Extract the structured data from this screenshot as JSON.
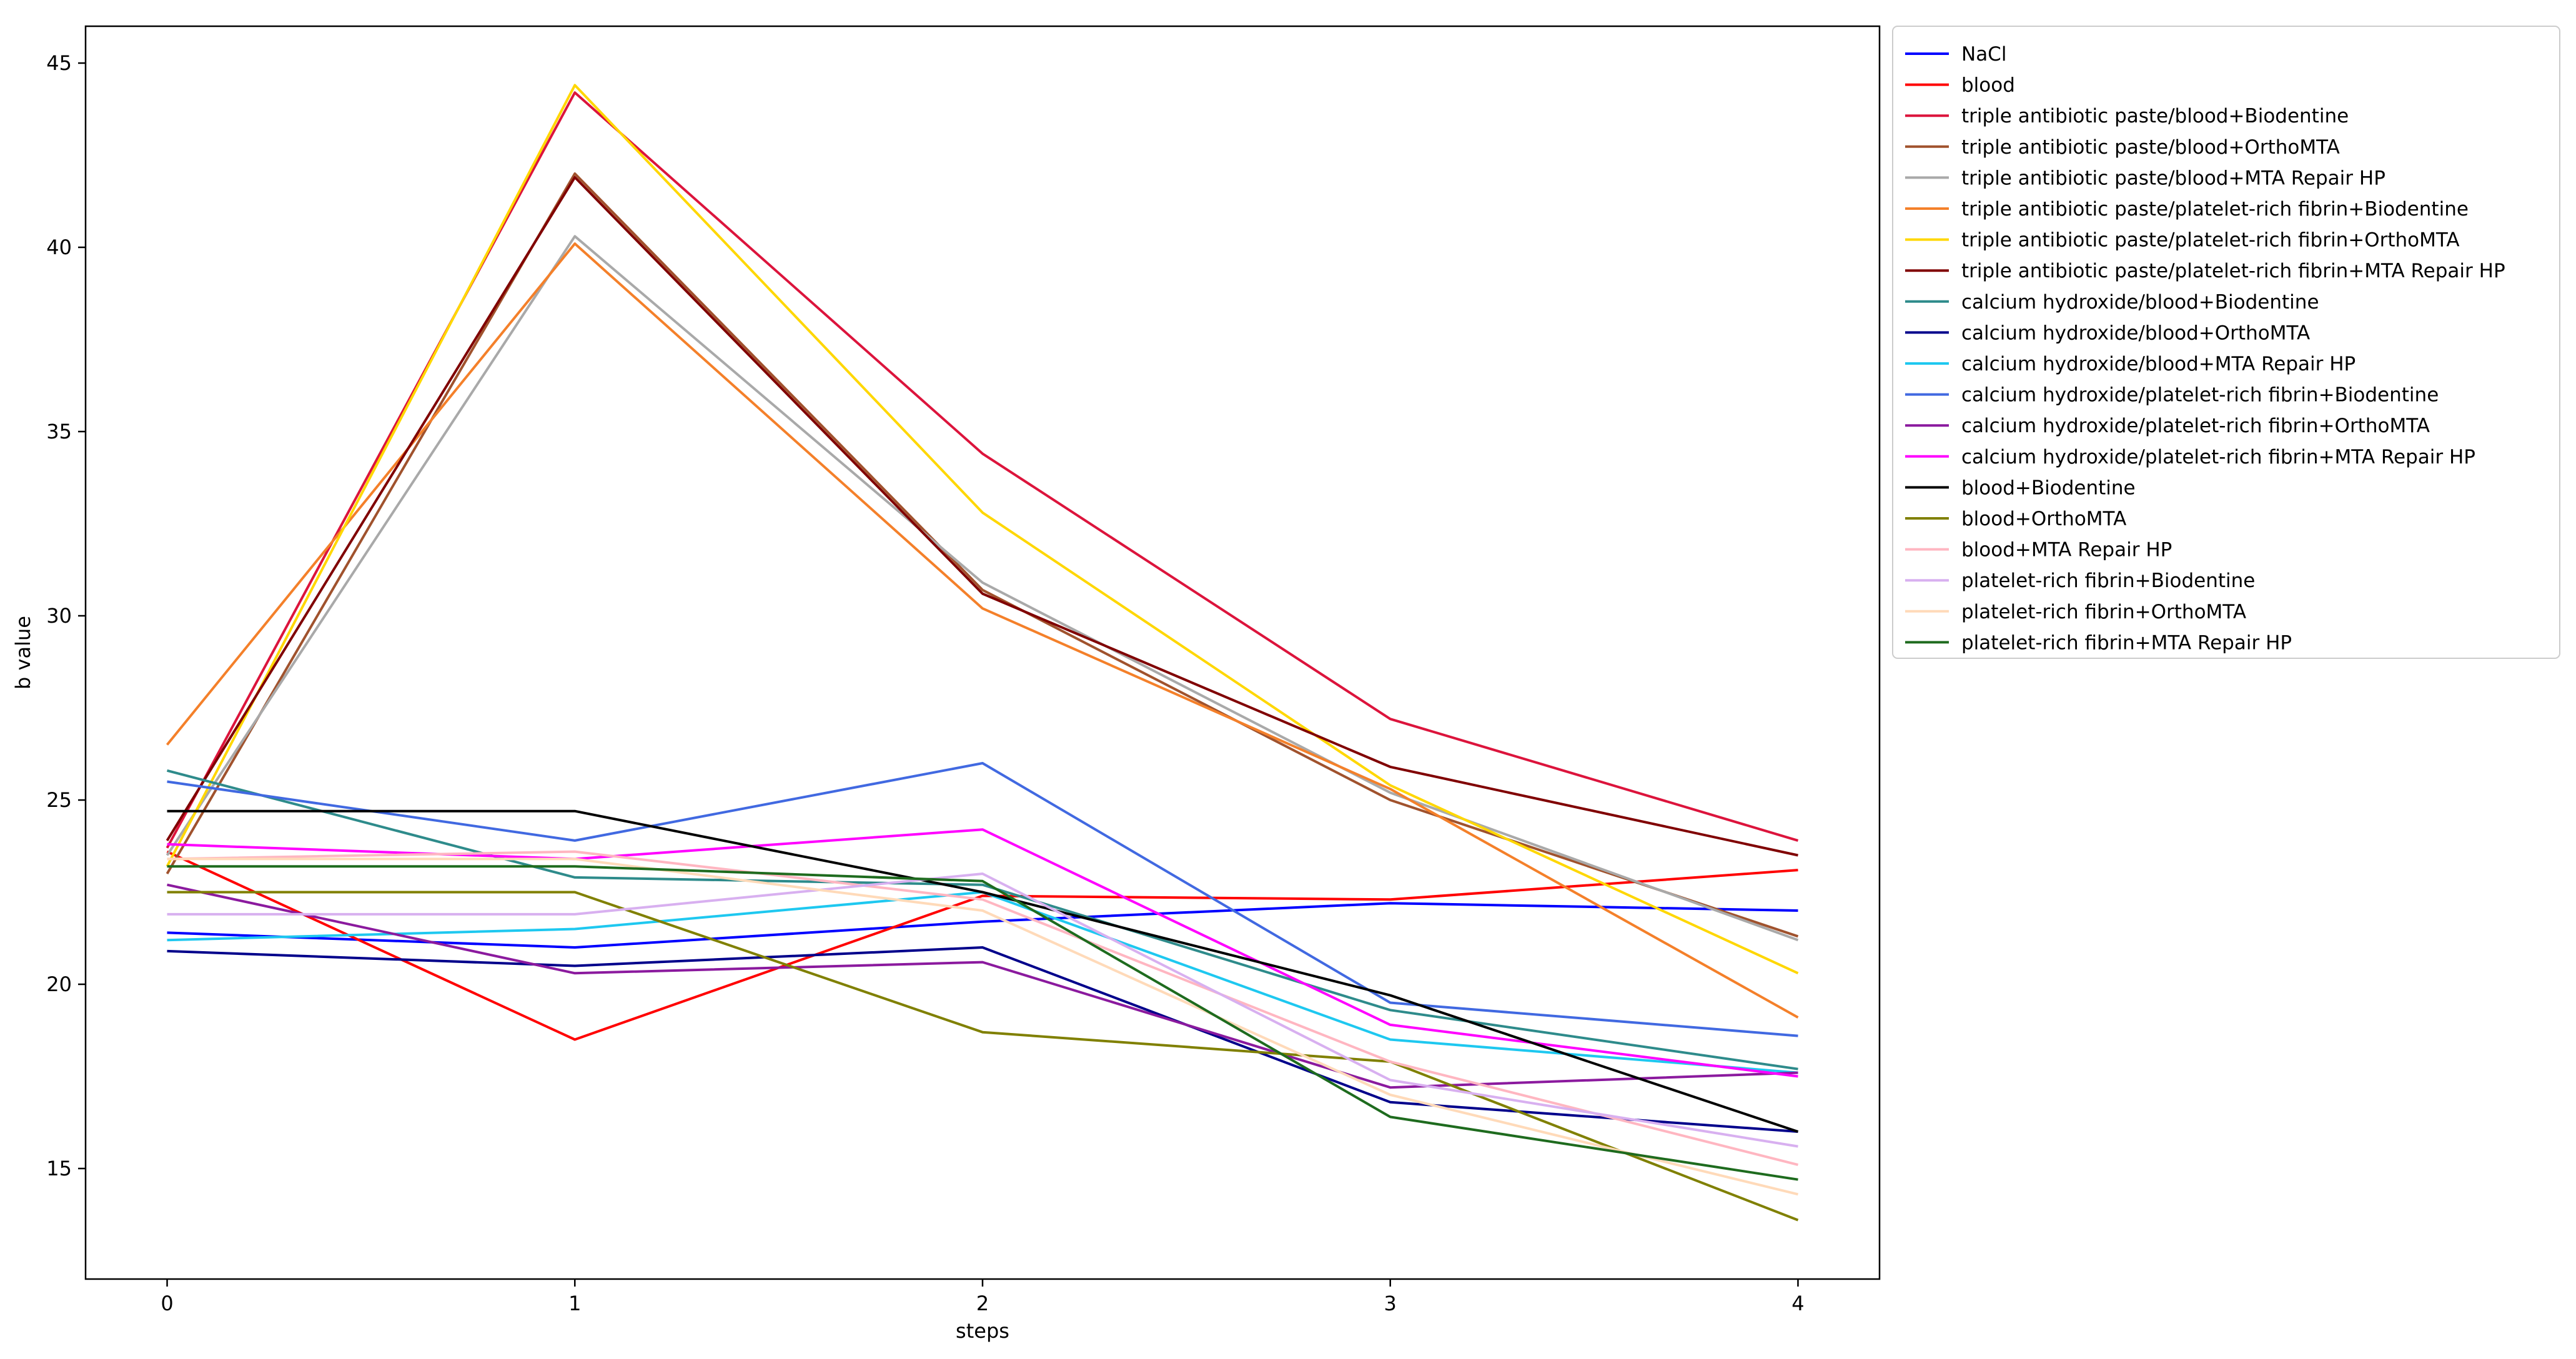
{
  "chart_data": {
    "type": "line",
    "title": "",
    "xlabel": "steps",
    "ylabel": "b value",
    "x": [
      0,
      1,
      2,
      3,
      4
    ],
    "xlim": [
      -0.2,
      4.2
    ],
    "ylim": [
      12.0,
      46.0
    ],
    "yticks": [
      15,
      20,
      25,
      30,
      35,
      40,
      45
    ],
    "grid": false,
    "legend_position": "outside-right-top",
    "series": [
      {
        "name": "NaCl",
        "color": "#0000ff",
        "values": [
          21.4,
          21.0,
          21.7,
          22.2,
          22.0
        ]
      },
      {
        "name": "blood",
        "color": "#ff0000",
        "values": [
          23.6,
          18.5,
          22.4,
          22.3,
          23.1
        ]
      },
      {
        "name": "triple antibiotic paste/blood+Biodentine",
        "color": "#dc143c",
        "values": [
          23.7,
          44.2,
          34.4,
          27.2,
          23.9
        ]
      },
      {
        "name": "triple antibiotic paste/blood+OrthoMTA",
        "color": "#a0522d",
        "values": [
          23.0,
          42.0,
          30.7,
          25.0,
          21.3
        ]
      },
      {
        "name": "triple antibiotic paste/blood+MTA Repair HP",
        "color": "#a9a9a9",
        "values": [
          23.5,
          40.3,
          30.9,
          25.2,
          21.2
        ]
      },
      {
        "name": "triple antibiotic paste/platelet-rich fibrin+Biodentine",
        "color": "#f4802a",
        "values": [
          26.5,
          40.1,
          30.2,
          25.3,
          19.1
        ]
      },
      {
        "name": "triple antibiotic paste/platelet-rich fibrin+OrthoMTA",
        "color": "#ffd700",
        "values": [
          23.2,
          44.4,
          32.8,
          25.4,
          20.3
        ]
      },
      {
        "name": "triple antibiotic paste/platelet-rich fibrin+MTA Repair HP",
        "color": "#800000",
        "values": [
          23.9,
          41.9,
          30.6,
          25.9,
          23.5
        ]
      },
      {
        "name": "calcium hydroxide/blood+Biodentine",
        "color": "#2e8b8b",
        "values": [
          25.8,
          22.9,
          22.7,
          19.3,
          17.7
        ]
      },
      {
        "name": "calcium hydroxide/blood+OrthoMTA",
        "color": "#00008b",
        "values": [
          20.9,
          20.5,
          21.0,
          16.8,
          16.0
        ]
      },
      {
        "name": "calcium hydroxide/blood+MTA Repair HP",
        "color": "#1ec8f0",
        "values": [
          21.2,
          21.5,
          22.5,
          18.5,
          17.6
        ]
      },
      {
        "name": "calcium hydroxide/platelet-rich fibrin+Biodentine",
        "color": "#4169e1",
        "values": [
          25.5,
          23.9,
          26.0,
          19.5,
          18.6
        ]
      },
      {
        "name": "calcium hydroxide/platelet-rich fibrin+OrthoMTA",
        "color": "#8b1a9e",
        "values": [
          22.7,
          20.3,
          20.6,
          17.2,
          17.6
        ]
      },
      {
        "name": "calcium hydroxide/platelet-rich fibrin+MTA Repair HP",
        "color": "#ff00ff",
        "values": [
          23.8,
          23.4,
          24.2,
          18.9,
          17.5
        ]
      },
      {
        "name": "blood+Biodentine",
        "color": "#000000",
        "values": [
          24.7,
          24.7,
          22.5,
          19.7,
          16.0
        ]
      },
      {
        "name": "blood+OrthoMTA",
        "color": "#808000",
        "values": [
          22.5,
          22.5,
          18.7,
          17.9,
          13.6
        ]
      },
      {
        "name": "blood+MTA Repair HP",
        "color": "#ffb6c1",
        "values": [
          23.4,
          23.6,
          22.3,
          17.9,
          15.1
        ]
      },
      {
        "name": "platelet-rich fibrin+Biodentine",
        "color": "#d8b0f0",
        "values": [
          21.9,
          21.9,
          23.0,
          17.4,
          15.6
        ]
      },
      {
        "name": "platelet-rich fibrin+OrthoMTA",
        "color": "#ffdab9",
        "values": [
          23.4,
          23.4,
          22.0,
          17.0,
          14.3
        ]
      },
      {
        "name": "platelet-rich fibrin+MTA Repair HP",
        "color": "#1e6b1e",
        "values": [
          23.2,
          23.2,
          22.8,
          16.4,
          14.7
        ]
      }
    ]
  }
}
